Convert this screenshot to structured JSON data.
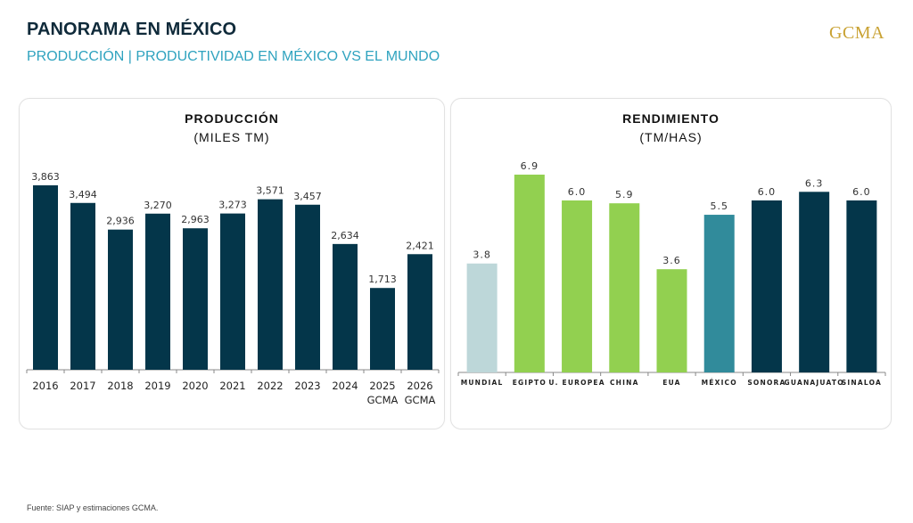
{
  "header": {
    "title": "PANORAMA EN MÉXICO",
    "subtitle": "PRODUCCIÓN | PRODUCTIVIDAD EN MÉXICO VS EL MUNDO",
    "logo": "GCMA"
  },
  "colors": {
    "dark_teal": "#04364a",
    "light_grey_blue": "#bdd7d9",
    "green": "#92d050",
    "mid_teal": "#318b9b",
    "subtitle": "#2fa3bf",
    "logo_gold": "#c9a233"
  },
  "chart_data": [
    {
      "type": "bar",
      "title": "PRODUCCIÓN",
      "subtitle": "(MILES TM)",
      "categories": [
        "2016",
        "2017",
        "2018",
        "2019",
        "2020",
        "2021",
        "2022",
        "2023",
        "2024",
        "2025\nGCMA",
        "2026\nGCMA"
      ],
      "category_lines": [
        [
          "2016"
        ],
        [
          "2017"
        ],
        [
          "2018"
        ],
        [
          "2019"
        ],
        [
          "2020"
        ],
        [
          "2021"
        ],
        [
          "2022"
        ],
        [
          "2023"
        ],
        [
          "2024"
        ],
        [
          "2025",
          "GCMA"
        ],
        [
          "2026",
          "GCMA"
        ]
      ],
      "values": [
        3863,
        3494,
        2936,
        3270,
        2963,
        3273,
        3571,
        3457,
        2634,
        1713,
        2421
      ],
      "labels": [
        "3,863",
        "3,494",
        "2,936",
        "3,270",
        "2,963",
        "3,273",
        "3,571",
        "3,457",
        "2,634",
        "1,713",
        "2,421"
      ],
      "bar_colors": [
        "#04364a",
        "#04364a",
        "#04364a",
        "#04364a",
        "#04364a",
        "#04364a",
        "#04364a",
        "#04364a",
        "#04364a",
        "#04364a",
        "#04364a"
      ],
      "ylim": [
        0,
        3863
      ],
      "grid": false,
      "xlabel": "",
      "ylabel": ""
    },
    {
      "type": "bar",
      "title": "RENDIMIENTO",
      "subtitle": "(TM/HAS)",
      "categories": [
        "MUNDIAL",
        "EGIPTO",
        "U. EUROPEA",
        "CHINA",
        "EUA",
        "MÉXICO",
        "SONORA",
        "GUANAJUATO",
        "SINALOA"
      ],
      "values": [
        3.8,
        6.9,
        6.0,
        5.9,
        3.6,
        5.5,
        6.0,
        6.3,
        6.0
      ],
      "labels": [
        "3.8",
        "6.9",
        "6.0",
        "5.9",
        "3.6",
        "5.5",
        "6.0",
        "6.3",
        "6.0"
      ],
      "bar_colors": [
        "#bdd7d9",
        "#92d050",
        "#92d050",
        "#92d050",
        "#92d050",
        "#318b9b",
        "#04364a",
        "#04364a",
        "#04364a"
      ],
      "ylim": [
        0,
        6.9
      ],
      "grid": false,
      "xlabel": "",
      "ylabel": ""
    }
  ],
  "footer": {
    "source": "Fuente: SIAP y estimaciones GCMA."
  }
}
